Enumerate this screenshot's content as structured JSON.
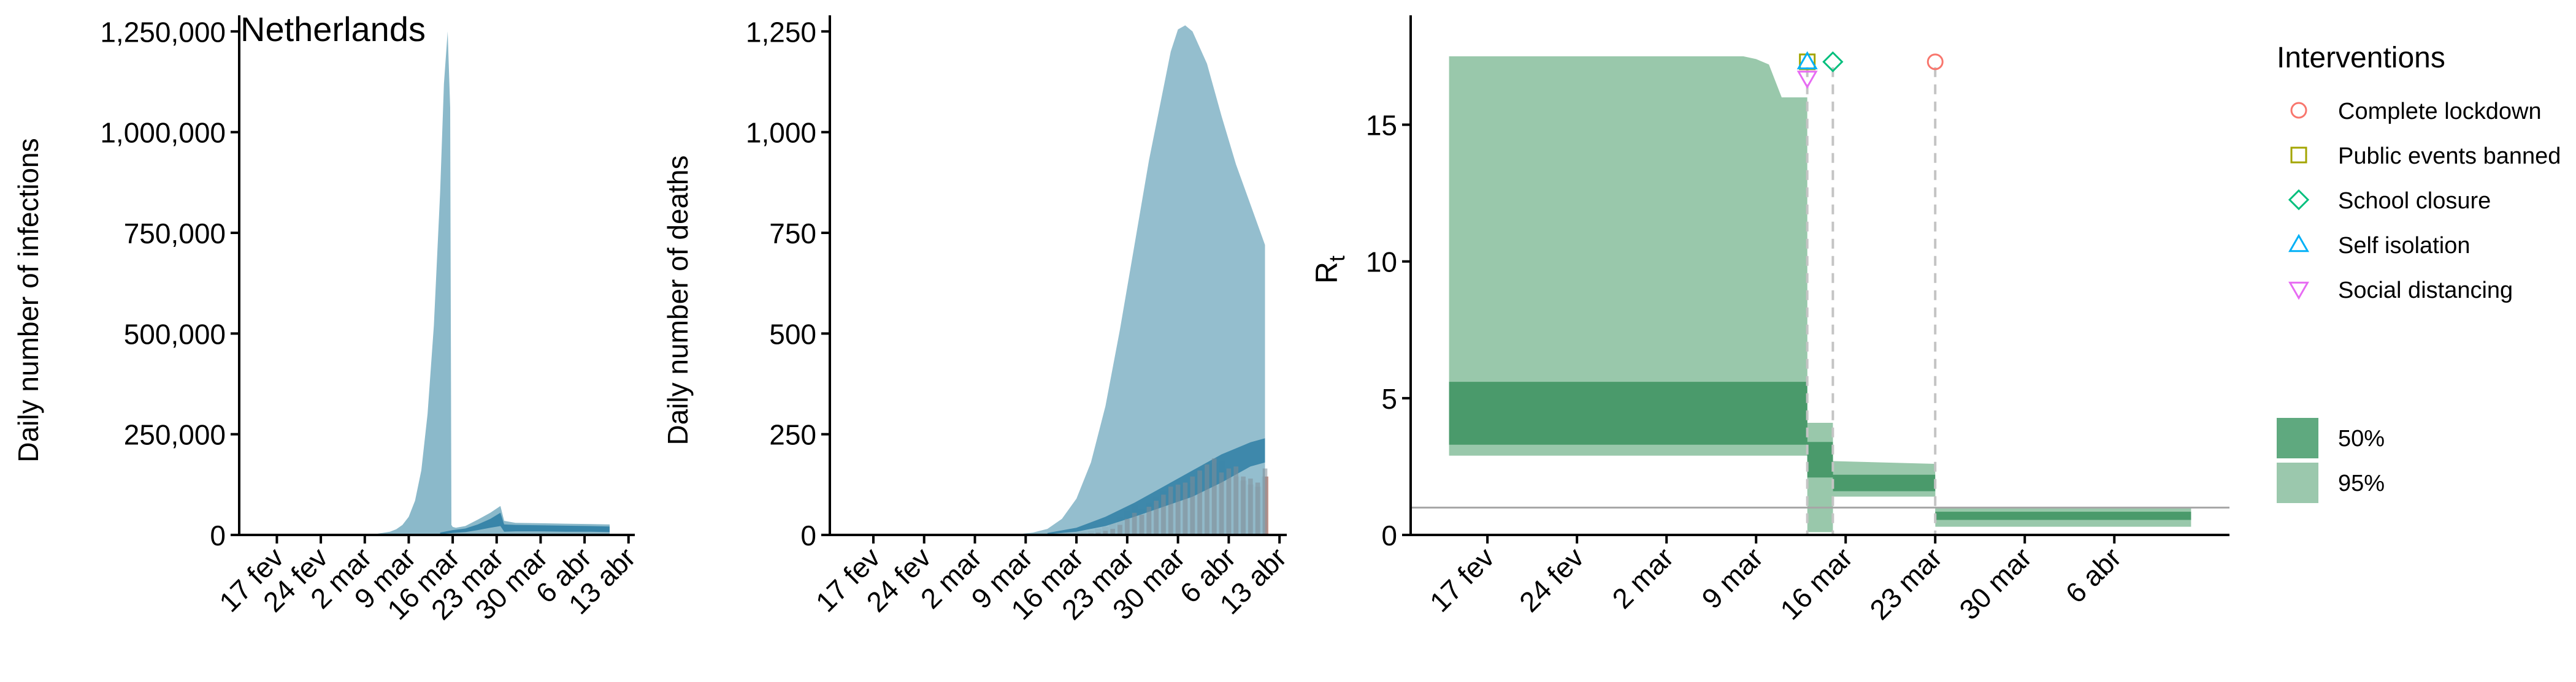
{
  "chart_data": [
    {
      "type": "area",
      "title": "Netherlands",
      "ylabel": "Daily number of infections",
      "ylim": [
        0,
        1290000
      ],
      "yticks": [
        0,
        250000,
        500000,
        750000,
        1000000,
        1250000
      ],
      "ytick_labels": [
        "0",
        "250,000",
        "500,000",
        "750,000",
        "1,000,000",
        "1,250,000"
      ],
      "x_tick_labels": [
        "17 fev",
        "24 fev",
        "2 mar",
        "9 mar",
        "16 mar",
        "23 mar",
        "30 mar",
        "6 abr",
        "13 abr"
      ],
      "x_tick_days": [
        0,
        7,
        14,
        21,
        28,
        35,
        42,
        49,
        56
      ],
      "xlim_days": [
        -6,
        57
      ],
      "series": [
        {
          "band": "95%",
          "x_days": [
            12,
            14,
            16,
            18,
            19,
            20,
            21,
            22,
            23,
            24,
            25,
            26,
            26.6,
            27.2,
            27.6,
            27.8,
            28,
            28.5,
            30,
            32,
            34,
            35.6,
            36.2,
            38,
            42,
            46,
            50,
            53
          ],
          "upper": [
            0,
            1000,
            3000,
            8000,
            14000,
            25000,
            45000,
            85000,
            160000,
            300000,
            520000,
            850000,
            1120000,
            1250000,
            1060000,
            25000,
            20000,
            18000,
            22000,
            38000,
            55000,
            72000,
            35000,
            30000,
            29000,
            28000,
            27000,
            26000
          ],
          "lower": [
            0,
            0,
            0,
            0,
            0,
            0,
            0,
            0,
            0,
            0,
            0,
            0,
            0,
            0,
            0,
            0,
            0,
            0,
            0,
            0,
            0,
            0,
            0,
            0,
            0,
            0,
            0,
            0
          ]
        },
        {
          "band": "50%",
          "x_days": [
            26,
            28,
            30,
            32,
            34,
            35.6,
            36.2,
            38,
            42,
            46,
            50,
            53
          ],
          "upper": [
            6000,
            12000,
            16000,
            26000,
            40000,
            55000,
            26000,
            25000,
            24000,
            23000,
            22000,
            21000
          ],
          "lower": [
            2000,
            5000,
            7000,
            12000,
            18000,
            22000,
            8000,
            9000,
            9000,
            8000,
            8000,
            7000
          ]
        }
      ]
    },
    {
      "type": "area",
      "ylabel": "Daily number of deaths",
      "ylim": [
        0,
        1290
      ],
      "yticks": [
        0,
        250,
        500,
        750,
        1000,
        1250
      ],
      "ytick_labels": [
        "0",
        "250",
        "500",
        "750",
        "1,000",
        "1,250"
      ],
      "x_tick_labels": [
        "17 fev",
        "24 fev",
        "2 mar",
        "9 mar",
        "16 mar",
        "23 mar",
        "30 mar",
        "6 abr",
        "13 abr"
      ],
      "x_tick_days": [
        0,
        7,
        14,
        21,
        28,
        35,
        42,
        49,
        56
      ],
      "xlim_days": [
        -6,
        57
      ],
      "series": [
        {
          "band": "95%",
          "x_days": [
            18,
            20,
            22,
            24,
            26,
            28,
            30,
            32,
            34,
            36,
            38,
            40,
            41,
            42,
            43,
            44,
            46,
            48,
            50,
            52,
            54
          ],
          "upper": [
            0,
            2,
            6,
            15,
            40,
            90,
            180,
            320,
            510,
            720,
            930,
            1110,
            1200,
            1255,
            1265,
            1250,
            1170,
            1040,
            920,
            820,
            720
          ],
          "lower": [
            0,
            0,
            0,
            0,
            0,
            0,
            0,
            0,
            0,
            0,
            0,
            0,
            0,
            0,
            0,
            0,
            0,
            0,
            0,
            0,
            0
          ]
        },
        {
          "band": "50%",
          "x_days": [
            24,
            28,
            32,
            36,
            40,
            44,
            48,
            52,
            54
          ],
          "upper": [
            5,
            18,
            45,
            80,
            120,
            160,
            200,
            230,
            240
          ],
          "lower": [
            2,
            8,
            22,
            45,
            70,
            95,
            130,
            170,
            180
          ]
        }
      ],
      "bars": {
        "x_days": [
          25,
          26,
          27,
          28,
          29,
          30,
          31,
          32,
          33,
          34,
          35,
          36,
          37,
          38,
          39,
          40,
          41,
          42,
          43,
          44,
          45,
          46,
          47,
          48,
          49,
          50,
          51,
          52,
          53,
          54
        ],
        "values": [
          1,
          3,
          5,
          6,
          8,
          10,
          15,
          20,
          30,
          45,
          60,
          75,
          65,
          80,
          95,
          110,
          115,
          120,
          125,
          130,
          165,
          175,
          180,
          185,
          165,
          145,
          135,
          125,
          120,
          145
        ]
      },
      "observed": {
        "x_days": [
          25,
          26,
          27,
          28,
          29,
          30,
          31,
          32,
          33,
          34,
          35,
          36,
          37,
          38,
          39,
          40,
          41,
          42,
          43,
          44,
          45,
          46,
          47,
          48,
          49,
          50,
          51,
          52,
          53,
          54
        ],
        "values": [
          0,
          0,
          1,
          2,
          3,
          4,
          6,
          10,
          15,
          25,
          40,
          55,
          50,
          70,
          85,
          100,
          120,
          125,
          130,
          145,
          160,
          175,
          190,
          155,
          165,
          170,
          145,
          140,
          130,
          165
        ]
      }
    },
    {
      "type": "area",
      "ylabel": "R",
      "ylabel_subscript": "t",
      "ylim": [
        0,
        19
      ],
      "yticks": [
        0,
        5,
        10,
        15
      ],
      "ytick_labels": [
        "0",
        "5",
        "10",
        "15"
      ],
      "reference_line": 1,
      "x_tick_labels": [
        "17 fev",
        "24 fev",
        "2 mar",
        "9 mar",
        "16 mar",
        "23 mar",
        "30 mar",
        "6 abr"
      ],
      "x_tick_days": [
        0,
        7,
        14,
        21,
        28,
        35,
        42,
        49
      ],
      "xlim_days": [
        -6,
        58
      ],
      "bands": {
        "x_days": [
          -3,
          20,
          21,
          22,
          23,
          25,
          25.01,
          27,
          27.01,
          35,
          35.01,
          55
        ],
        "p95_upper": [
          17.5,
          17.5,
          17.4,
          17.2,
          16.0,
          16.0,
          4.1,
          4.1,
          2.7,
          2.6,
          1.0,
          1.0
        ],
        "p95_lower": [
          2.9,
          2.9,
          2.9,
          2.9,
          2.9,
          2.9,
          0.1,
          0.1,
          1.4,
          1.4,
          0.3,
          0.3
        ],
        "p50_upper": [
          5.6,
          5.6,
          5.6,
          5.6,
          5.6,
          5.6,
          3.4,
          3.4,
          2.2,
          2.2,
          0.85,
          0.85
        ],
        "p50_lower": [
          3.3,
          3.3,
          3.3,
          3.3,
          3.3,
          3.3,
          2.1,
          2.1,
          1.6,
          1.6,
          0.55,
          0.55
        ]
      },
      "interventions": [
        {
          "name": "Complete lockdown",
          "symbol": "circle",
          "color": "#f8766d",
          "day": 35,
          "value": 17.3
        },
        {
          "name": "Public events banned",
          "symbol": "square",
          "color": "#a3a500",
          "day": 25,
          "value": 17.3
        },
        {
          "name": "School closure",
          "symbol": "diamond",
          "color": "#00bf7d",
          "day": 27,
          "value": 17.3
        },
        {
          "name": "Self isolation",
          "symbol": "triangle-up",
          "color": "#00b0f6",
          "day": 25,
          "value": 17.3
        },
        {
          "name": "Social distancing",
          "symbol": "triangle-down",
          "color": "#e76bf3",
          "day": 25,
          "value": 16.7
        }
      ],
      "intervention_lines_days": [
        25,
        27,
        35
      ]
    }
  ],
  "legend": {
    "title": "Interventions",
    "items": [
      {
        "label": "Complete lockdown",
        "symbol": "circle",
        "color": "#f8766d"
      },
      {
        "label": "Public events banned",
        "symbol": "square",
        "color": "#a3a500"
      },
      {
        "label": "School closure",
        "symbol": "diamond",
        "color": "#00bf7d"
      },
      {
        "label": "Self isolation",
        "symbol": "triangle-up",
        "color": "#00b0f6"
      },
      {
        "label": "Social distancing",
        "symbol": "triangle-down",
        "color": "#e76bf3"
      }
    ],
    "bands": [
      {
        "label": "50%",
        "color": "#5fa97f"
      },
      {
        "label": "95%",
        "color": "#9bc8ad"
      }
    ]
  },
  "colors": {
    "blue_95": "#8bb9ca",
    "blue_50": "#2f7fa5",
    "bars": "#c8958a",
    "green_95": "#99c8ab",
    "green_50": "#4a9a6b",
    "ref_line": "#a6a6a6",
    "dashed_line": "#c4c4c4"
  }
}
